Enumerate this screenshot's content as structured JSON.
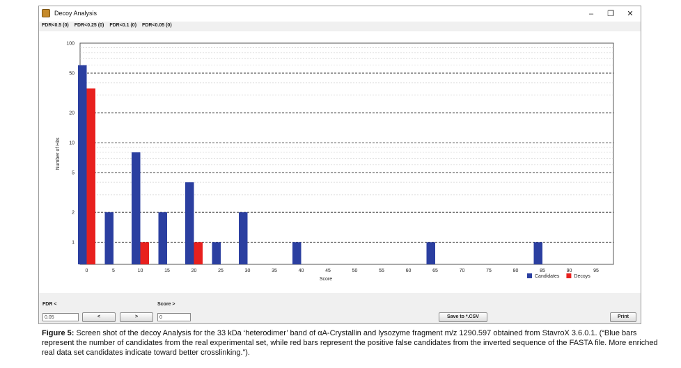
{
  "window": {
    "title": "Decoy Analysis",
    "controls": {
      "minimize": "–",
      "maximize": "❐",
      "close": "✕"
    }
  },
  "fdr_tabs": [
    "FDR<0.5 (0)",
    "FDR<0.25 (0)",
    "FDR<0.1 (0)",
    "FDR<0.05 (0)"
  ],
  "controls": {
    "fdr_label": "FDR <",
    "fdr_value": "0.05",
    "score_label": "Score >",
    "score_value": "0",
    "prev_button": "<",
    "next_button": ">",
    "save_button": "Save to *.CSV",
    "print_button": "Print"
  },
  "chart_data": {
    "type": "bar",
    "xlabel": "Score",
    "ylabel": "Number of Hits",
    "y_scale": "log",
    "ylim": [
      0.6,
      100
    ],
    "y_ticks": [
      1,
      2,
      5,
      10,
      20,
      50,
      100
    ],
    "x_ticks": [
      0,
      5,
      10,
      15,
      20,
      25,
      30,
      35,
      40,
      45,
      50,
      55,
      60,
      65,
      70,
      75,
      80,
      85,
      90,
      95
    ],
    "legend": {
      "position": "bottom-right"
    },
    "series": [
      {
        "name": "Candidates",
        "color": "#2b3fa0",
        "x": [
          0,
          5,
          10,
          15,
          20,
          25,
          30,
          40,
          65,
          85
        ],
        "values": [
          60,
          2,
          8,
          2,
          4,
          1,
          2,
          1,
          1,
          1
        ]
      },
      {
        "name": "Decoys",
        "color": "#e8201e",
        "x": [
          0,
          10,
          20
        ],
        "values": [
          35,
          1,
          1
        ]
      }
    ]
  },
  "caption": {
    "label": "Figure 5:",
    "text": " Screen shot of the decoy Analysis for the 33 kDa ‘heterodimer’ band of αA-Crystallin and lysozyme fragment m/z 1290.597 obtained from StavroX 3.6.0.1. (“Blue bars represent the number of candidates from the real experimental set, while red bars represent the positive false candidates from the inverted sequence of the FASTA file. More enriched real data set candidates indicate toward better crosslinking.”)."
  }
}
